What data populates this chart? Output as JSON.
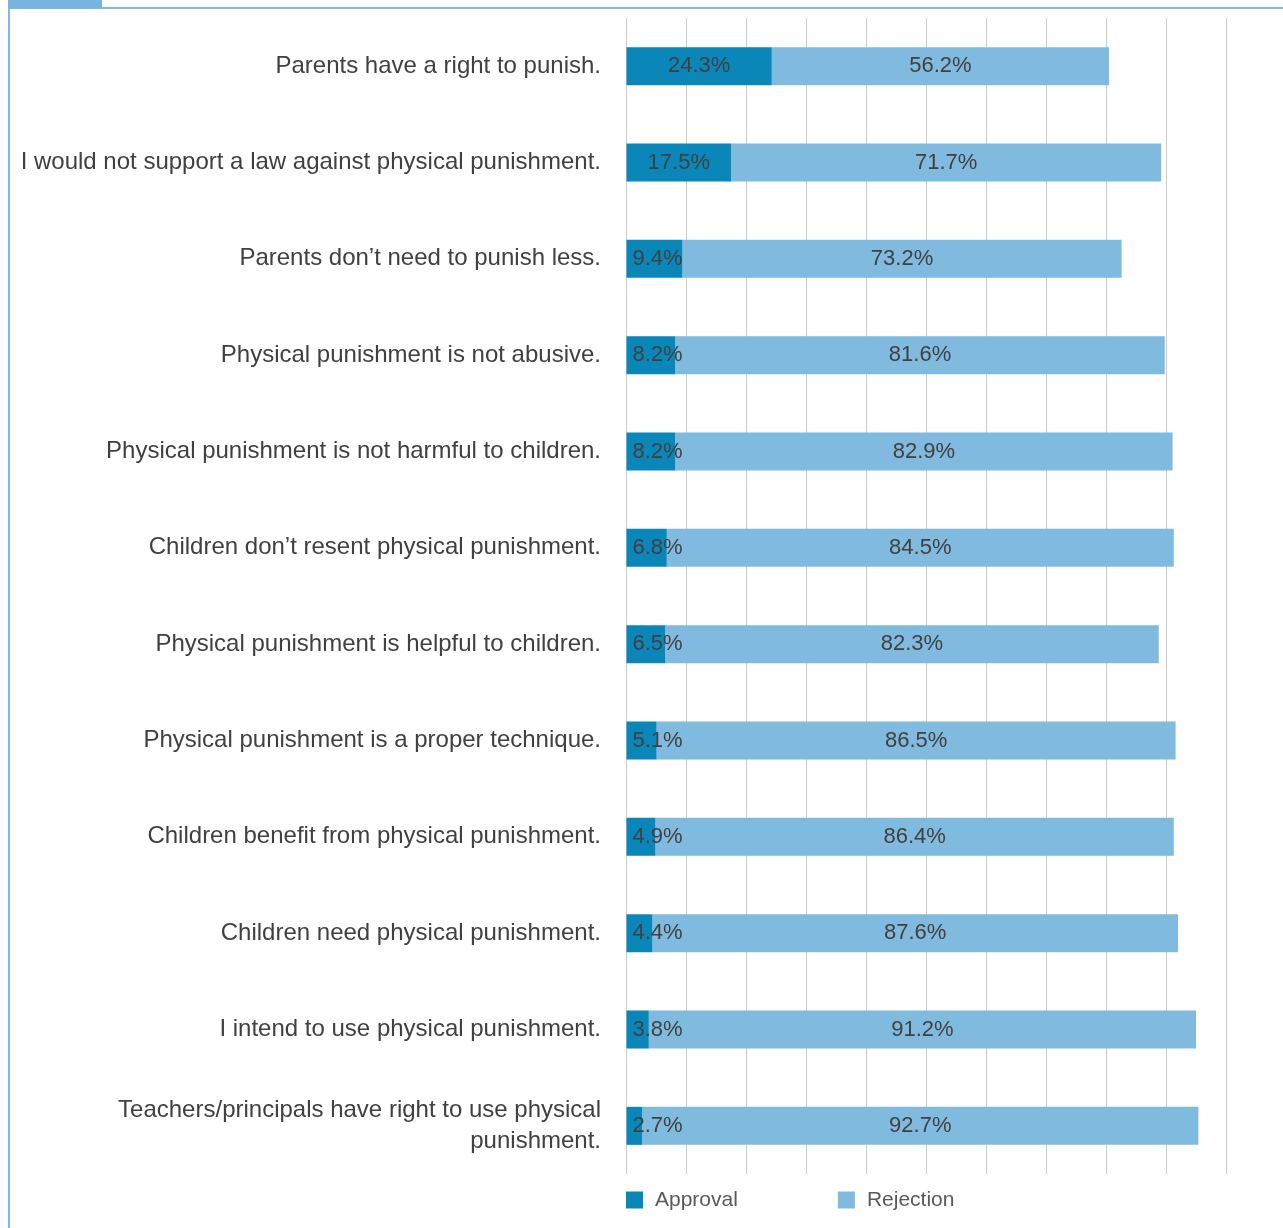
{
  "chart_data": {
    "type": "bar",
    "orientation": "horizontal",
    "stacked": true,
    "grid": "x",
    "legend": "bottom",
    "tick_labels": "y",
    "xlim": [
      0,
      100
    ],
    "categories": [
      "Parents have a right to punish.",
      "I would not support a law against physical punishment.",
      "Parents don’t need to punish less.",
      "Physical punishment is not abusive.",
      "Physical punishment is not harmful to children.",
      "Children don’t resent physical punishment.",
      "Physical punishment is helpful to children.",
      "Physical punishment is a proper technique.",
      "Children benefit from physical punishment.",
      "Children need physical punishment.",
      "I intend to use physical punishment.",
      "Teachers/principals have right to use physical punishment."
    ],
    "series": [
      {
        "name": "Approval",
        "color": "#0b86b9",
        "values": [
          24.3,
          17.5,
          9.4,
          8.2,
          8.2,
          6.8,
          6.5,
          5.1,
          4.9,
          4.4,
          3.8,
          2.7
        ],
        "value_labels": [
          "24.3%",
          "17.5%",
          "9.4%",
          "8.2%",
          "8.2%",
          "6.8%",
          "6.5%",
          "5.1%",
          "4.9%",
          "4.4%",
          "3.8%",
          "2.7%"
        ]
      },
      {
        "name": "Rejection",
        "color": "#80badf",
        "values": [
          56.2,
          71.7,
          73.2,
          81.6,
          82.9,
          84.5,
          82.3,
          86.5,
          86.4,
          87.6,
          91.2,
          92.7
        ],
        "value_labels": [
          "56.2%",
          "71.7%",
          "73.2%",
          "81.6%",
          "82.9%",
          "84.5%",
          "82.3%",
          "86.5%",
          "86.4%",
          "87.6%",
          "91.2%",
          "92.7%"
        ]
      }
    ]
  }
}
